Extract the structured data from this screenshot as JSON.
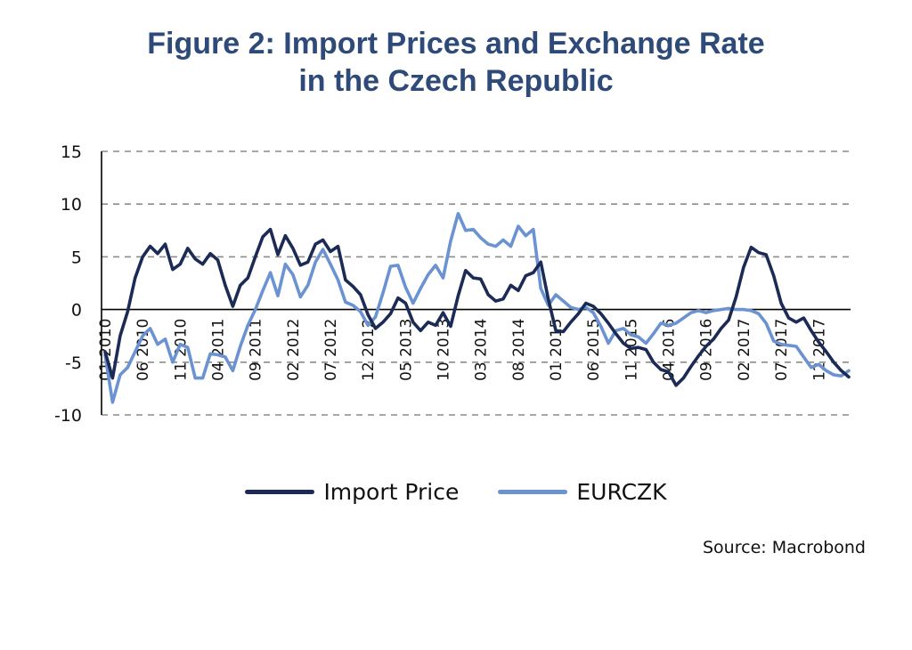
{
  "title": {
    "line1": "Figure 2: Import Prices and Exchange Rate",
    "line2": "in the Czech Republic"
  },
  "source": "Source: Macrobond",
  "colors": {
    "import": "#1c2b55",
    "eurczk": "#6b93d2",
    "title": "#2e4a78",
    "grid": "#8c8c8c"
  },
  "chart_data": {
    "type": "line",
    "title": "Figure 2: Import Prices and Exchange Rate in the Czech Republic",
    "xlabel": "",
    "ylabel": "",
    "ylim": [
      -10,
      15
    ],
    "yticks": [
      -10,
      -5,
      0,
      5,
      10,
      15
    ],
    "grid": "horizontal dashed",
    "legend_position": "bottom",
    "x_start": "01 2010",
    "x_end": "12 2017",
    "xticks": [
      "01 2010",
      "06 2010",
      "11 2010",
      "04 2011",
      "09 2011",
      "02 2012",
      "07 2012",
      "12 2012",
      "05 2013",
      "10 2013",
      "03 2014",
      "08 2014",
      "01 2015",
      "06 2015",
      "11 2015",
      "04 2016",
      "09 2016",
      "02 2017",
      "07 2017",
      "12 2017"
    ],
    "series": [
      {
        "name": "Import Price",
        "values": [
          -4,
          -6.5,
          -2.5,
          -0.2,
          3,
          5,
          6,
          5.3,
          6.2,
          3.8,
          4.3,
          5.8,
          4.8,
          4.3,
          5.3,
          4.7,
          2.3,
          0.3,
          2.3,
          3,
          5,
          6.9,
          7.6,
          5.2,
          7,
          5.8,
          4.2,
          4.5,
          6.2,
          6.6,
          5.5,
          6,
          2.8,
          2.2,
          1.4,
          -0.5,
          -1.8,
          -1.2,
          -0.4,
          1.1,
          0.6,
          -1.2,
          -2,
          -1.2,
          -1.5,
          -0.3,
          -1.6,
          1.3,
          3.7,
          3,
          2.9,
          1.4,
          0.8,
          1,
          2.3,
          1.8,
          3.2,
          3.5,
          4.5,
          1,
          -2,
          -2.1,
          -1.2,
          -0.4,
          0.6,
          0.3,
          -0.4,
          -1.3,
          -2.3,
          -3.2,
          -3.7,
          -3.6,
          -3.8,
          -5,
          -5.7,
          -5.9,
          -7.2,
          -6.5,
          -5.4,
          -4.4,
          -3.5,
          -2.8,
          -1.8,
          -1,
          1.2,
          4,
          5.9,
          5.4,
          5.2,
          3.2,
          0.6,
          -0.8,
          -1.2,
          -0.8,
          -2,
          -3.1,
          -4,
          -5,
          -5.8,
          -6.4
        ]
      },
      {
        "name": "EURCZK",
        "values": [
          -4.3,
          -8.8,
          -6.2,
          -5.5,
          -4,
          -2.5,
          -1.8,
          -3.3,
          -2.8,
          -5,
          -3.3,
          -3.6,
          -6.5,
          -6.5,
          -4.2,
          -4.3,
          -4.5,
          -5.8,
          -3.5,
          -1.5,
          0,
          1.8,
          3.5,
          1.3,
          4.3,
          3.3,
          1.2,
          2.3,
          4.5,
          5.7,
          4.3,
          2.8,
          0.7,
          0.4,
          -0.2,
          -1.5,
          -0.7,
          1.6,
          4.1,
          4.2,
          2.1,
          0.6,
          2,
          3.3,
          4.2,
          3,
          6.5,
          9.1,
          7.5,
          7.6,
          6.8,
          6.2,
          6,
          6.6,
          6,
          7.9,
          7,
          7.6,
          2,
          0.4,
          1.4,
          0.8,
          0.2,
          0,
          0.2,
          -0.3,
          -1.6,
          -3.2,
          -2,
          -1.8,
          -2.4,
          -2.6,
          -3.2,
          -2.3,
          -1.3,
          -1.5,
          -1.3,
          -0.8,
          -0.3,
          -0.1,
          -0.3,
          -0.1,
          0,
          0.1,
          0,
          0,
          -0.1,
          -0.4,
          -1.3,
          -3,
          -3.3,
          -3.4,
          -3.5,
          -4.5,
          -5.5,
          -5.2,
          -5.8,
          -6.2,
          -6.3,
          -5.8
        ]
      }
    ]
  }
}
